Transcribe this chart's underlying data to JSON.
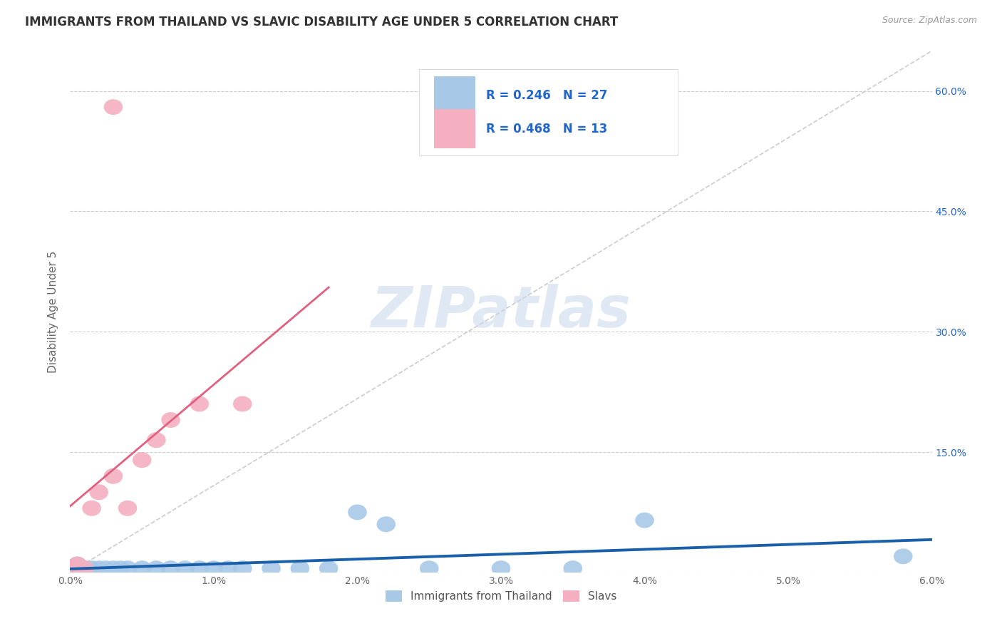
{
  "title": "IMMIGRANTS FROM THAILAND VS SLAVIC DISABILITY AGE UNDER 5 CORRELATION CHART",
  "source": "Source: ZipAtlas.com",
  "ylabel": "Disability Age Under 5",
  "xlim": [
    0.0,
    0.06
  ],
  "ylim": [
    0.0,
    0.65
  ],
  "xticks": [
    0.0,
    0.01,
    0.02,
    0.03,
    0.04,
    0.05,
    0.06
  ],
  "xtick_labels": [
    "0.0%",
    "1.0%",
    "2.0%",
    "3.0%",
    "4.0%",
    "5.0%",
    "6.0%"
  ],
  "ytick_positions": [
    0.0,
    0.15,
    0.3,
    0.45,
    0.6
  ],
  "ytick_labels": [
    "",
    "15.0%",
    "30.0%",
    "45.0%",
    "60.0%"
  ],
  "grid_color": "#cccccc",
  "background_color": "#ffffff",
  "thailand_color": "#a8c8e8",
  "slavs_color": "#f4b0c0",
  "thailand_line_color": "#1a5faa",
  "slavs_line_color": "#e06080",
  "diagonal_color": "#cccccc",
  "legend_thailand_R": 0.246,
  "legend_thailand_N": 27,
  "legend_slavs_R": 0.468,
  "legend_slavs_N": 13,
  "R_color": "#2266cc",
  "watermark": "ZIPatlas",
  "thailand_x": [
    0.0005,
    0.001,
    0.0008,
    0.0015,
    0.002,
    0.0025,
    0.003,
    0.0035,
    0.004,
    0.005,
    0.006,
    0.007,
    0.008,
    0.009,
    0.01,
    0.011,
    0.012,
    0.014,
    0.016,
    0.018,
    0.02,
    0.022,
    0.025,
    0.03,
    0.035,
    0.04,
    0.058
  ],
  "thailand_y": [
    0.01,
    0.005,
    0.005,
    0.005,
    0.005,
    0.005,
    0.005,
    0.005,
    0.005,
    0.005,
    0.005,
    0.005,
    0.005,
    0.005,
    0.005,
    0.005,
    0.005,
    0.005,
    0.005,
    0.005,
    0.075,
    0.06,
    0.005,
    0.005,
    0.005,
    0.065,
    0.02
  ],
  "slavs_x": [
    0.0002,
    0.0005,
    0.001,
    0.0015,
    0.002,
    0.003,
    0.004,
    0.005,
    0.006,
    0.007,
    0.009,
    0.012,
    0.003
  ],
  "slavs_y": [
    0.005,
    0.01,
    0.005,
    0.08,
    0.1,
    0.12,
    0.08,
    0.14,
    0.165,
    0.19,
    0.21,
    0.21,
    0.58
  ]
}
